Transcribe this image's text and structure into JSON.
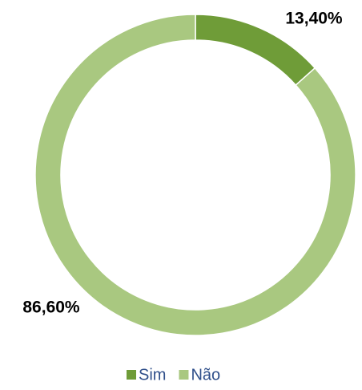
{
  "chart_data": {
    "type": "donut",
    "categories": [
      "Sim",
      "Não"
    ],
    "values": [
      13.4,
      86.6
    ],
    "value_labels": [
      "13,40%",
      "86,60%"
    ],
    "colors": [
      "#6f9c38",
      "#a9c880"
    ],
    "legend": "bottom"
  }
}
